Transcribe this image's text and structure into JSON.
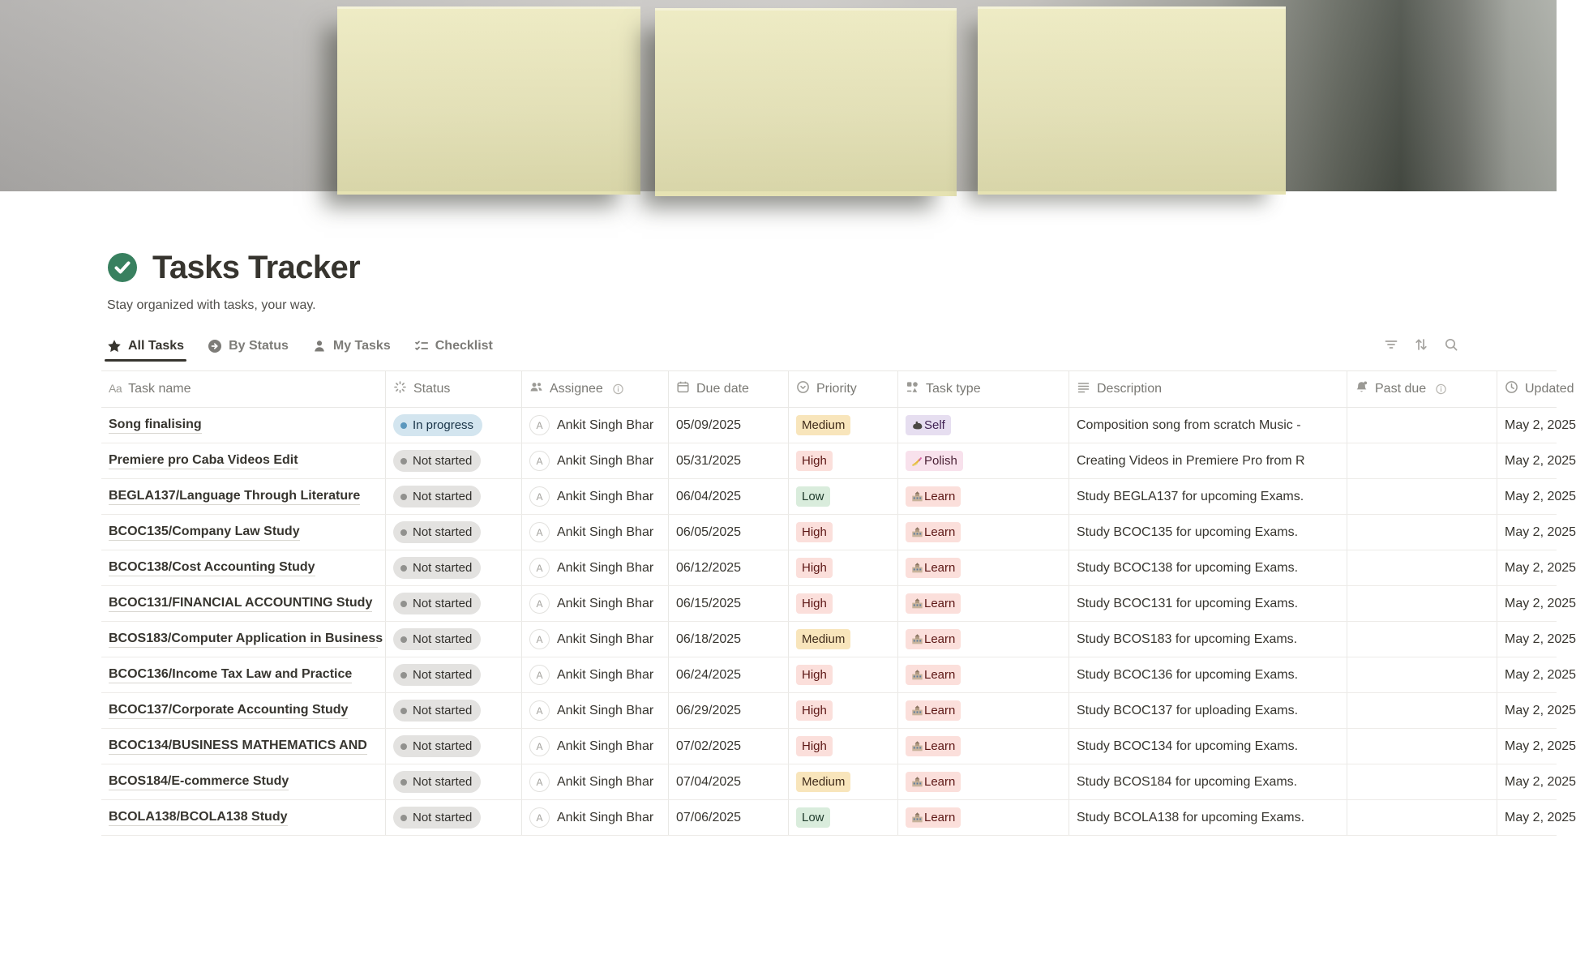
{
  "page": {
    "title": "Tasks Tracker",
    "subtitle": "Stay organized with tasks, your way.",
    "icon": "check-circle",
    "icon_color": "#38805f"
  },
  "tabs": [
    {
      "label": "All Tasks",
      "icon": "star",
      "active": true
    },
    {
      "label": "By Status",
      "icon": "circle-arrow",
      "active": false
    },
    {
      "label": "My Tasks",
      "icon": "person",
      "active": false
    },
    {
      "label": "Checklist",
      "icon": "checklist",
      "active": false
    }
  ],
  "toolbar": [
    {
      "icon": "filter"
    },
    {
      "icon": "sort"
    },
    {
      "icon": "search"
    }
  ],
  "table": {
    "columns": [
      {
        "label": "Task name",
        "icon": "text-style"
      },
      {
        "label": "Status",
        "icon": "status-spinner"
      },
      {
        "label": "Assignee",
        "icon": "people",
        "info": true
      },
      {
        "label": "Due date",
        "icon": "calendar"
      },
      {
        "label": "Priority",
        "icon": "select-circle"
      },
      {
        "label": "Task type",
        "icon": "shapes"
      },
      {
        "label": "Description",
        "icon": "text-lines"
      },
      {
        "label": "Past due",
        "icon": "bell",
        "info": true
      },
      {
        "label": "Updated",
        "icon": "clock"
      }
    ],
    "rows": [
      {
        "name": "Song finalising",
        "status": "In progress",
        "avatar": "A",
        "assignee": "Ankit Singh Bhar",
        "due": "05/09/2025",
        "priority": "Medium",
        "type": "Self",
        "description": "Composition song from scratch Music -",
        "past_due": "",
        "updated": "May 2, 2025"
      },
      {
        "name": "Premiere pro Caba Videos Edit",
        "status": "Not started",
        "avatar": "A",
        "assignee": "Ankit Singh Bhar",
        "due": "05/31/2025",
        "priority": "High",
        "type": "Polish",
        "description": "Creating Videos in Premiere Pro from R",
        "past_due": "",
        "updated": "May 2, 2025"
      },
      {
        "name": "BEGLA137/Language Through Literature",
        "status": "Not started",
        "avatar": "A",
        "assignee": "Ankit Singh Bhar",
        "due": "06/04/2025",
        "priority": "Low",
        "type": "Learn",
        "description": "Study BEGLA137 for upcoming Exams.",
        "past_due": "",
        "updated": "May 2, 2025"
      },
      {
        "name": "BCOC135/Company Law Study",
        "status": "Not started",
        "avatar": "A",
        "assignee": "Ankit Singh Bhar",
        "due": "06/05/2025",
        "priority": "High",
        "type": "Learn",
        "description": "Study BCOC135 for upcoming Exams.",
        "past_due": "",
        "updated": "May 2, 2025"
      },
      {
        "name": "BCOC138/Cost Accounting Study",
        "status": "Not started",
        "avatar": "A",
        "assignee": "Ankit Singh Bhar",
        "due": "06/12/2025",
        "priority": "High",
        "type": "Learn",
        "description": "Study BCOC138 for upcoming Exams.",
        "past_due": "",
        "updated": "May 2, 2025"
      },
      {
        "name": "BCOC131/FINANCIAL ACCOUNTING Study",
        "status": "Not started",
        "avatar": "A",
        "assignee": "Ankit Singh Bhar",
        "due": "06/15/2025",
        "priority": "High",
        "type": "Learn",
        "description": "Study BCOC131 for upcoming Exams.",
        "past_due": "",
        "updated": "May 2, 2025"
      },
      {
        "name": "BCOS183/Computer Application in Business",
        "status": "Not started",
        "avatar": "A",
        "assignee": "Ankit Singh Bhar",
        "due": "06/18/2025",
        "priority": "Medium",
        "type": "Learn",
        "description": "Study BCOS183 for upcoming Exams.",
        "past_due": "",
        "updated": "May 2, 2025"
      },
      {
        "name": "BCOC136/Income Tax Law and Practice",
        "status": "Not started",
        "avatar": "A",
        "assignee": "Ankit Singh Bhar",
        "due": "06/24/2025",
        "priority": "High",
        "type": "Learn",
        "description": "Study BCOC136 for upcoming Exams.",
        "past_due": "",
        "updated": "May 2, 2025"
      },
      {
        "name": "BCOC137/Corporate Accounting Study",
        "status": "Not started",
        "avatar": "A",
        "assignee": "Ankit Singh Bhar",
        "due": "06/29/2025",
        "priority": "High",
        "type": "Learn",
        "description": "Study BCOC137 for uploading Exams.",
        "past_due": "",
        "updated": "May 2, 2025"
      },
      {
        "name": "BCOC134/BUSINESS MATHEMATICS AND",
        "status": "Not started",
        "avatar": "A",
        "assignee": "Ankit Singh Bhar",
        "due": "07/02/2025",
        "priority": "High",
        "type": "Learn",
        "description": "Study BCOC134 for upcoming Exams.",
        "past_due": "",
        "updated": "May 2, 2025"
      },
      {
        "name": "BCOS184/E-commerce Study",
        "status": "Not started",
        "avatar": "A",
        "assignee": "Ankit Singh Bhar",
        "due": "07/04/2025",
        "priority": "Medium",
        "type": "Learn",
        "description": "Study BCOS184 for upcoming Exams.",
        "past_due": "",
        "updated": "May 2, 2025"
      },
      {
        "name": "BCOLA138/BCOLA138 Study",
        "status": "Not started",
        "avatar": "A",
        "assignee": "Ankit Singh Bhar",
        "due": "07/06/2025",
        "priority": "Low",
        "type": "Learn",
        "description": "Study BCOLA138 for upcoming Exams.",
        "past_due": "",
        "updated": "May 2, 2025"
      }
    ]
  },
  "statuses": {
    "In progress": {
      "bg": "#d3e5ef",
      "dot": "#5b97bd",
      "text": "#183347"
    },
    "Not started": {
      "bg": "#e3e2e0",
      "dot": "#91918e",
      "text": "#32302c"
    }
  },
  "priorities": {
    "High": {
      "bg": "#fbdfdb",
      "text": "#5d1715"
    },
    "Medium": {
      "bg": "#f8e5bb",
      "text": "#402c1b"
    },
    "Low": {
      "bg": "#d9ecdc",
      "text": "#1c3829"
    }
  },
  "task_types": {
    "Self": {
      "bg": "#e6def0",
      "text": "#412454",
      "emoji": "💪",
      "emoji_name": "flexed-biceps"
    },
    "Polish": {
      "bg": "#f8e1ec",
      "text": "#4c2337",
      "emoji": "💅",
      "emoji_name": "nail-polish"
    },
    "Learn": {
      "bg": "#fbdfdb",
      "text": "#5d1715",
      "emoji": "🏫",
      "emoji_name": "school"
    }
  }
}
